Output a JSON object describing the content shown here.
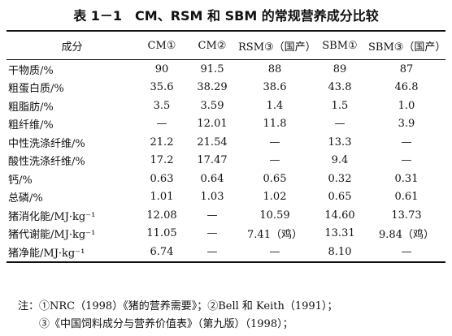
{
  "title": "表 1－1　CM、RSM 和 SBM 的常规营养成分比较",
  "table": {
    "header": [
      "成分",
      "CM①",
      "CM②",
      "RSM③（国产）",
      "SBM①",
      "SBM③（国产）"
    ],
    "rows": [
      [
        "干物质/%",
        "90",
        "91.5",
        "88",
        "89",
        "87"
      ],
      [
        "粗蛋白质/%",
        "35.6",
        "38.29",
        "38.6",
        "43.8",
        "46.8"
      ],
      [
        "粗脂肪/%",
        "3.5",
        "3.59",
        "1.4",
        "1.5",
        "1.0"
      ],
      [
        "粗纤维/%",
        "—",
        "12.01",
        "11.8",
        "—",
        "3.9"
      ],
      [
        "中性洗涤纤维/%",
        "21.2",
        "21.54",
        "—",
        "13.3",
        "—"
      ],
      [
        "酸性洗涤纤维/%",
        "17.2",
        "17.47",
        "—",
        "9.4",
        "—"
      ],
      [
        "钙/%",
        "0.63",
        "0.64",
        "0.65",
        "0.32",
        "0.31"
      ],
      [
        "总磷/%",
        "1.01",
        "1.03",
        "1.02",
        "0.65",
        "0.61"
      ],
      [
        "猪消化能/MJ·kg⁻¹",
        "12.08",
        "—",
        "10.59",
        "14.60",
        "13.73"
      ],
      [
        "猪代谢能/MJ·kg⁻¹",
        "11.05",
        "—",
        "7.41（鸡）",
        "13.31",
        "9.84（鸡）"
      ],
      [
        "猪净能/MJ·kg⁻¹",
        "6.74",
        "—",
        "—",
        "8.10",
        "—"
      ]
    ]
  },
  "notes": [
    "注：①NRC（1998）《猪的营养需要》；②Bell 和 Keith（1991）；",
    "③《中国饲料成分与营养价值表》（第九版）（1998）；"
  ]
}
